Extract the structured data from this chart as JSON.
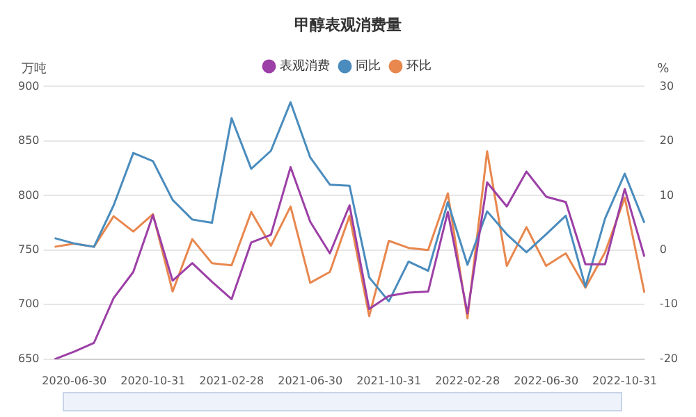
{
  "chart_data": {
    "type": "line",
    "title": "甲醇表观消费量",
    "ylabel": "万吨",
    "y2label": "%",
    "categories": [
      null,
      "2020-06-30",
      null,
      null,
      null,
      "2020-10-31",
      null,
      null,
      null,
      "2021-02-28",
      null,
      null,
      null,
      "2021-06-30",
      null,
      null,
      null,
      "2021-10-31",
      null,
      null,
      null,
      "2022-02-28",
      null,
      null,
      null,
      "2022-06-30",
      null,
      null,
      null,
      "2022-10-31",
      null
    ],
    "series": [
      {
        "name": "表观消费",
        "color": "#9c3fa6",
        "values": [
          650,
          657,
          665,
          706,
          730,
          782,
          722,
          738,
          721,
          705,
          757,
          764,
          826,
          776,
          747,
          791,
          696,
          708,
          711,
          712,
          785,
          692,
          812,
          790,
          822,
          799,
          794,
          737,
          737,
          806,
          744
        ]
      },
      {
        "name": "同比",
        "color": "#4a8cbd",
        "axis": "y2",
        "values": [
          2.2,
          1.2,
          0.6,
          8.2,
          17.8,
          16.3,
          9.2,
          5.6,
          5.0,
          24.2,
          14.9,
          18.2,
          27.1,
          17.0,
          12.0,
          11.8,
          -5,
          -9.4,
          -2.1,
          -3.8,
          8.8,
          -2.7,
          7.1,
          2.9,
          -0.4,
          2.9,
          6.3,
          -6.7,
          5.8,
          14,
          5
        ]
      },
      {
        "name": "环比",
        "color": "#e8874e",
        "axis": "y2",
        "values": [
          0.6,
          1.2,
          0.6,
          6.2,
          3.4,
          6.6,
          -7.6,
          2.0,
          -2.4,
          -2.8,
          7.0,
          0.8,
          8.0,
          -6.0,
          -4.0,
          6.3,
          -12.1,
          1.7,
          0.4,
          0,
          10.4,
          -12.5,
          18.1,
          -2.9,
          4.2,
          -2.9,
          -0.6,
          -6.9,
          -0.4,
          9.6,
          -7.8
        ]
      }
    ],
    "ylim": [
      650,
      900
    ],
    "yticks": [
      650,
      700,
      750,
      800,
      850,
      900
    ],
    "y2lim": [
      -20,
      30
    ],
    "y2ticks": [
      -20,
      -10,
      0,
      10,
      20,
      30
    ],
    "grid": "y",
    "legend": "top"
  }
}
